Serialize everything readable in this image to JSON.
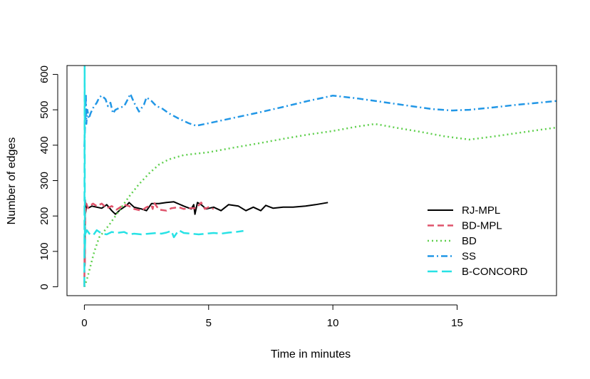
{
  "chart_data": {
    "type": "line",
    "title": "",
    "xlabel": "Time in minutes",
    "ylabel": "Number of edges",
    "xlim": [
      -0.7,
      19
    ],
    "ylim": [
      -25,
      625
    ],
    "xticks": [
      0,
      5,
      10,
      15
    ],
    "yticks": [
      0,
      100,
      200,
      300,
      400,
      500,
      600
    ],
    "grid": false,
    "legend_position": "right",
    "series": [
      {
        "name": "RJ-MPL",
        "color": "#000000",
        "dash": "",
        "width": 2,
        "points": [
          [
            0,
            0
          ],
          [
            0.01,
            150
          ],
          [
            0.02,
            60
          ],
          [
            0.03,
            245
          ],
          [
            0.05,
            210
          ],
          [
            0.08,
            230
          ],
          [
            0.15,
            222
          ],
          [
            0.3,
            228
          ],
          [
            0.5,
            225
          ],
          [
            0.7,
            222
          ],
          [
            0.9,
            232
          ],
          [
            1.1,
            215
          ],
          [
            1.25,
            205
          ],
          [
            1.45,
            218
          ],
          [
            1.7,
            230
          ],
          [
            1.8,
            238
          ],
          [
            2.0,
            225
          ],
          [
            2.3,
            220
          ],
          [
            2.5,
            215
          ],
          [
            2.7,
            235
          ],
          [
            3.0,
            235
          ],
          [
            3.3,
            238
          ],
          [
            3.6,
            240
          ],
          [
            4.0,
            228
          ],
          [
            4.3,
            220
          ],
          [
            4.4,
            232
          ],
          [
            4.45,
            205
          ],
          [
            4.55,
            238
          ],
          [
            4.7,
            232
          ],
          [
            4.9,
            220
          ],
          [
            5.2,
            225
          ],
          [
            5.5,
            215
          ],
          [
            5.8,
            232
          ],
          [
            6.2,
            228
          ],
          [
            6.5,
            215
          ],
          [
            6.8,
            225
          ],
          [
            7.1,
            215
          ],
          [
            7.3,
            230
          ],
          [
            7.6,
            222
          ],
          [
            8.0,
            225
          ],
          [
            8.4,
            225
          ],
          [
            8.9,
            228
          ],
          [
            9.3,
            232
          ],
          [
            9.8,
            238
          ]
        ]
      },
      {
        "name": "BD-MPL",
        "color": "#df536b",
        "dash": "9,5",
        "width": 2.5,
        "points": [
          [
            0,
            0
          ],
          [
            0.01,
            140
          ],
          [
            0.02,
            60
          ],
          [
            0.04,
            228
          ],
          [
            0.08,
            235
          ],
          [
            0.15,
            222
          ],
          [
            0.25,
            230
          ],
          [
            0.35,
            235
          ],
          [
            0.5,
            228
          ],
          [
            0.7,
            235
          ],
          [
            0.9,
            222
          ],
          [
            1.1,
            228
          ],
          [
            1.3,
            218
          ],
          [
            1.6,
            232
          ],
          [
            1.8,
            228
          ],
          [
            2.0,
            220
          ],
          [
            2.3,
            215
          ],
          [
            2.5,
            225
          ],
          [
            2.7,
            230
          ],
          [
            2.75,
            220
          ],
          [
            2.8,
            238
          ],
          [
            3.0,
            218
          ],
          [
            3.3,
            215
          ],
          [
            3.5,
            222
          ],
          [
            3.8,
            225
          ],
          [
            4.0,
            220
          ],
          [
            4.2,
            222
          ],
          [
            4.5,
            222
          ],
          [
            4.7,
            238
          ],
          [
            4.85,
            220
          ],
          [
            5.0,
            225
          ],
          [
            5.2,
            220
          ]
        ]
      },
      {
        "name": "BD",
        "color": "#61d04f",
        "dash": "2,4",
        "width": 2.5,
        "points": [
          [
            0,
            0
          ],
          [
            0.1,
            20
          ],
          [
            0.4,
            100
          ],
          [
            0.6,
            140
          ],
          [
            1.0,
            175
          ],
          [
            1.4,
            215
          ],
          [
            1.8,
            255
          ],
          [
            2.2,
            290
          ],
          [
            2.6,
            320
          ],
          [
            3.0,
            345
          ],
          [
            3.4,
            360
          ],
          [
            4.0,
            372
          ],
          [
            5.0,
            380
          ],
          [
            6.0,
            393
          ],
          [
            7.0,
            405
          ],
          [
            8.0,
            418
          ],
          [
            9.0,
            430
          ],
          [
            10.0,
            440
          ],
          [
            11.0,
            453
          ],
          [
            11.7,
            460
          ],
          [
            12.5,
            450
          ],
          [
            13.5,
            438
          ],
          [
            14.5,
            425
          ],
          [
            15.5,
            416
          ],
          [
            16.5,
            425
          ],
          [
            17.5,
            435
          ],
          [
            18.3,
            443
          ],
          [
            19.0,
            450
          ]
        ]
      },
      {
        "name": "SS",
        "color": "#2297e6",
        "dash": "9,4,2,4",
        "width": 2.5,
        "points": [
          [
            0,
            395
          ],
          [
            0.03,
            460
          ],
          [
            0.06,
            545
          ],
          [
            0.08,
            460
          ],
          [
            0.12,
            500
          ],
          [
            0.18,
            475
          ],
          [
            0.25,
            490
          ],
          [
            0.35,
            505
          ],
          [
            0.5,
            520
          ],
          [
            0.6,
            535
          ],
          [
            0.7,
            540
          ],
          [
            0.85,
            530
          ],
          [
            0.95,
            510
          ],
          [
            1.05,
            520
          ],
          [
            1.15,
            490
          ],
          [
            1.25,
            500
          ],
          [
            1.4,
            505
          ],
          [
            1.6,
            510
          ],
          [
            1.75,
            530
          ],
          [
            1.85,
            545
          ],
          [
            2.0,
            520
          ],
          [
            2.2,
            495
          ],
          [
            2.4,
            515
          ],
          [
            2.5,
            535
          ],
          [
            2.7,
            525
          ],
          [
            2.9,
            510
          ],
          [
            3.1,
            505
          ],
          [
            3.4,
            490
          ],
          [
            3.8,
            475
          ],
          [
            4.2,
            462
          ],
          [
            4.5,
            455
          ],
          [
            5.0,
            462
          ],
          [
            6.0,
            477
          ],
          [
            7.0,
            492
          ],
          [
            8.0,
            508
          ],
          [
            9.0,
            525
          ],
          [
            10.0,
            540
          ],
          [
            11.0,
            532
          ],
          [
            12.0,
            522
          ],
          [
            13.0,
            512
          ],
          [
            14.0,
            502
          ],
          [
            14.8,
            498
          ],
          [
            15.5,
            500
          ],
          [
            16.5,
            507
          ],
          [
            17.5,
            515
          ],
          [
            18.3,
            520
          ],
          [
            19.0,
            525
          ]
        ]
      },
      {
        "name": "B-CONCORD",
        "color": "#28e2e5",
        "dash": "14,6",
        "width": 2.5,
        "points": [
          [
            0,
            0
          ],
          [
            0.01,
            630
          ],
          [
            0.02,
            100
          ],
          [
            0.04,
            150
          ],
          [
            0.1,
            160
          ],
          [
            0.2,
            150
          ],
          [
            0.35,
            145
          ],
          [
            0.5,
            160
          ],
          [
            0.7,
            150
          ],
          [
            0.9,
            148
          ],
          [
            1.1,
            155
          ],
          [
            1.3,
            152
          ],
          [
            1.6,
            155
          ],
          [
            1.8,
            148
          ],
          [
            2.0,
            150
          ],
          [
            2.3,
            148
          ],
          [
            2.6,
            150
          ],
          [
            2.9,
            152
          ],
          [
            3.1,
            150
          ],
          [
            3.3,
            153
          ],
          [
            3.5,
            158
          ],
          [
            3.6,
            140
          ],
          [
            3.8,
            160
          ],
          [
            4.0,
            152
          ],
          [
            4.3,
            150
          ],
          [
            4.6,
            148
          ],
          [
            4.9,
            150
          ],
          [
            5.2,
            152
          ],
          [
            5.5,
            150
          ],
          [
            5.8,
            153
          ],
          [
            6.1,
            155
          ],
          [
            6.4,
            158
          ]
        ]
      }
    ]
  }
}
